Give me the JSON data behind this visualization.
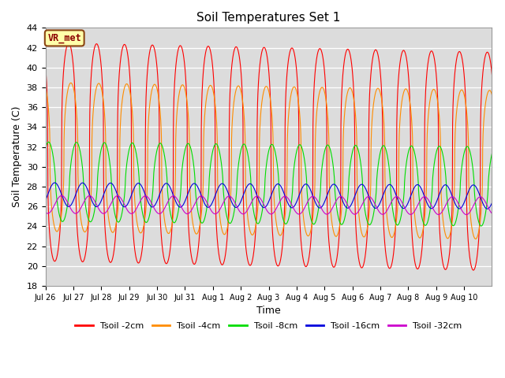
{
  "title": "Soil Temperatures Set 1",
  "xlabel": "Time",
  "ylabel": "Soil Temperature (C)",
  "ylim": [
    18,
    44
  ],
  "yticks": [
    18,
    20,
    22,
    24,
    26,
    28,
    30,
    32,
    34,
    36,
    38,
    40,
    42,
    44
  ],
  "bg_color": "#dcdcdc",
  "annotation_text": "VR_met",
  "annotation_bg": "#ffffaa",
  "annotation_border": "#8B4513",
  "series": [
    {
      "label": "Tsoil -2cm",
      "color": "#ff0000",
      "amplitude": 11.0,
      "baseline": 31.5,
      "phase_shift": 0.0,
      "sharpness": 3.0,
      "trend": -0.06
    },
    {
      "label": "Tsoil -4cm",
      "color": "#ff8c00",
      "amplitude": 7.5,
      "baseline": 31.0,
      "phase_shift": 0.08,
      "sharpness": 2.5,
      "trend": -0.05
    },
    {
      "label": "Tsoil -8cm",
      "color": "#00dd00",
      "amplitude": 4.0,
      "baseline": 28.5,
      "phase_shift": 0.28,
      "sharpness": 1.5,
      "trend": -0.03
    },
    {
      "label": "Tsoil -16cm",
      "color": "#0000dd",
      "amplitude": 1.2,
      "baseline": 27.2,
      "phase_shift": 0.5,
      "sharpness": 1.0,
      "trend": -0.015
    },
    {
      "label": "Tsoil -32cm",
      "color": "#cc00cc",
      "amplitude": 0.9,
      "baseline": 26.2,
      "phase_shift": 0.75,
      "sharpness": 1.0,
      "trend": -0.008
    }
  ],
  "x_tick_labels": [
    "Jul 26",
    "Jul 27",
    "Jul 28",
    "Jul 29",
    "Jul 30",
    "Jul 31",
    "Aug 1",
    "Aug 2",
    "Aug 3",
    "Aug 4",
    "Aug 5",
    "Aug 6",
    "Aug 7",
    "Aug 8",
    "Aug 9",
    "Aug 10"
  ],
  "n_days": 16,
  "points_per_day": 144
}
